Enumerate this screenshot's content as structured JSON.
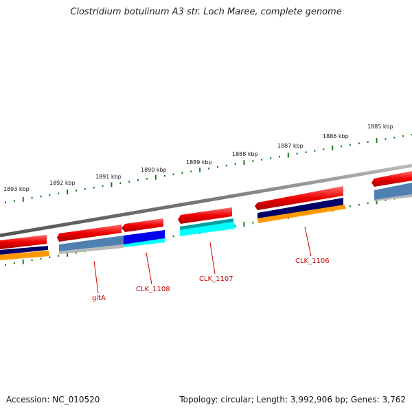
{
  "title": "Clostridium botulinum A3 str. Loch Maree, complete genome",
  "footer": {
    "accession": "Accession: NC_010520",
    "stats": "Topology: circular; Length: 3,992,906 bp; Genes: 3,762"
  },
  "scale_labels": [
    "1893 kbp",
    "1892 kbp",
    "1891 kbp",
    "1890 kbp",
    "1889 kbp",
    "1888 kbp",
    "1887 kbp",
    "1886 kbp",
    "1885 kbp"
  ],
  "gene_labels": [
    "gltA",
    "CLK_1108",
    "CLK_1107",
    "CLK_1106"
  ],
  "colors": {
    "backbone": "#888888",
    "ticks": "#1a7a1a",
    "gene_red": "#ee0000",
    "navy": "#000066",
    "orange": "#ff9900",
    "steel": "#5080b0",
    "silver": "#b8b8b8",
    "blue": "#0000ee",
    "cyan": "#00ffff",
    "teal": "#00a0a0",
    "label": "#cc0000"
  }
}
